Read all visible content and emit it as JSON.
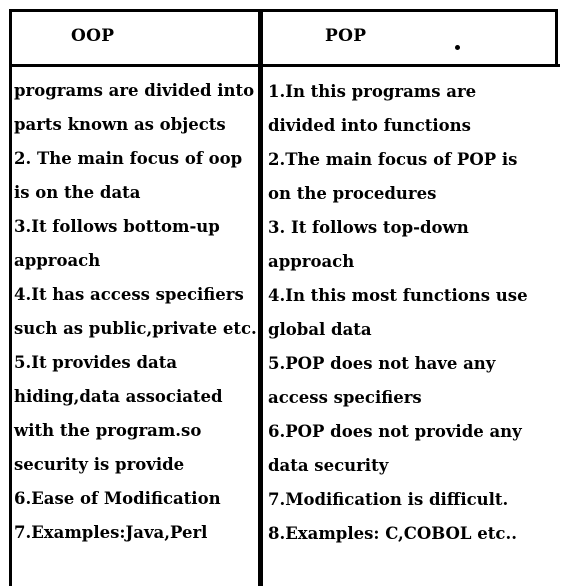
{
  "table": {
    "headers": {
      "left": "OOP",
      "right": "POP"
    },
    "left_lines": [
      "programs are divided into",
      "parts known as objects",
      "2. The main focus of oop",
      "is on the data",
      "3.It follows bottom-up",
      "approach",
      "4.It has access specifiers",
      "such as public,private etc.",
      "5.It provides data",
      "hiding,data associated",
      "with the program.so",
      "security is provide",
      "6.Ease of Modification",
      "7.Examples:Java,Perl"
    ],
    "right_lines": [
      "1.In this programs are",
      "divided into functions",
      "2.The main focus of POP is",
      "on the procedures",
      "3. It follows top-down",
      "approach",
      "4.In this most functions use",
      "global data",
      "5.POP does not have any",
      "access specifiers",
      "6.POP does not provide any",
      "data security",
      "7.Modification is difficult.",
      "8.Examples: C,COBOL etc.."
    ]
  }
}
